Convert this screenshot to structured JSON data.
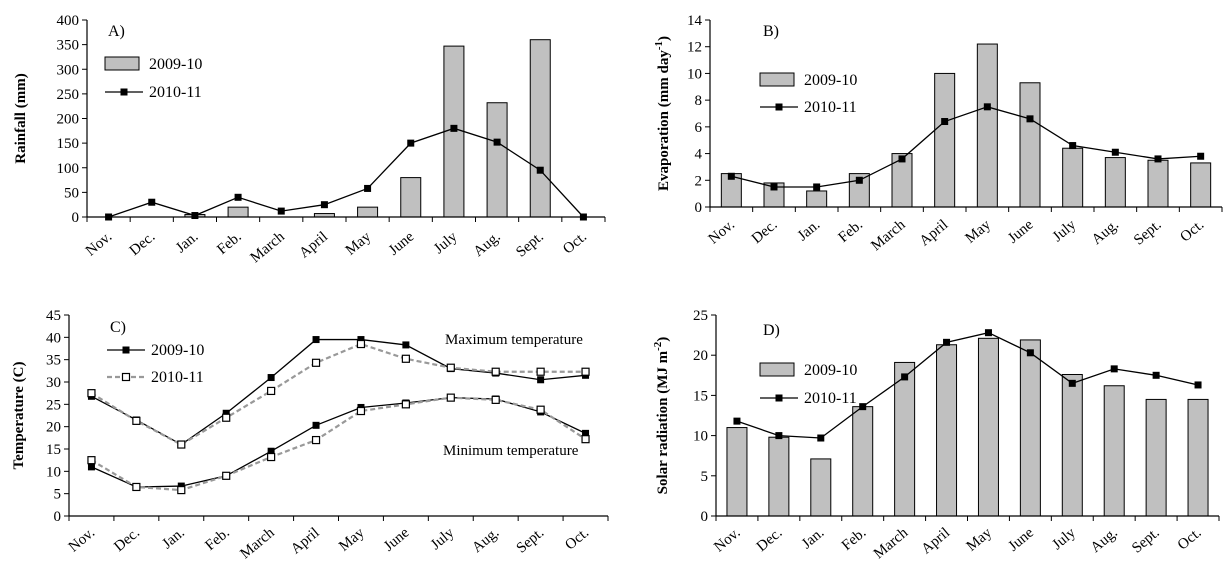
{
  "months": [
    "Nov.",
    "Dec.",
    "Jan.",
    "Feb.",
    "March",
    "April",
    "May",
    "June",
    "July",
    "Aug.",
    "Sept.",
    "Oct."
  ],
  "colors": {
    "bar": "#c0c0c0",
    "bar_edge": "#000000",
    "line_dark": "#000000",
    "line_dashed": "#999999"
  },
  "chart_data": [
    {
      "id": "A",
      "type": "bar",
      "panel_label": "A)",
      "ylabel": "Rainfall (mm)",
      "ylim": [
        0,
        400
      ],
      "yticks": [
        0,
        50,
        100,
        150,
        200,
        250,
        300,
        350,
        400
      ],
      "legend": [
        "2009-10",
        "2010-11"
      ],
      "series": [
        {
          "name": "2009-10",
          "kind": "bar",
          "values": [
            0,
            0,
            5,
            20,
            0,
            7,
            20,
            80,
            347,
            232,
            360,
            0
          ]
        },
        {
          "name": "2010-11",
          "kind": "line",
          "marker": "filled-square",
          "values": [
            0,
            30,
            3,
            40,
            12,
            25,
            58,
            150,
            180,
            152,
            95,
            0
          ]
        }
      ]
    },
    {
      "id": "B",
      "type": "bar",
      "panel_label": "B)",
      "ylabel": "Evaporation (mm day",
      "ylabel_sup": "-1",
      "ylabel_end": ")",
      "ylim": [
        0,
        14
      ],
      "yticks": [
        0,
        2,
        4,
        6,
        8,
        10,
        12,
        14
      ],
      "legend": [
        "2009-10",
        "2010-11"
      ],
      "series": [
        {
          "name": "2009-10",
          "kind": "bar",
          "values": [
            2.5,
            1.8,
            1.2,
            2.5,
            4.0,
            10.0,
            12.2,
            9.3,
            4.4,
            3.7,
            3.5,
            3.3
          ]
        },
        {
          "name": "2010-11",
          "kind": "line",
          "marker": "filled-square",
          "values": [
            2.3,
            1.5,
            1.5,
            2.0,
            3.6,
            6.4,
            7.5,
            6.6,
            4.6,
            4.1,
            3.6,
            3.8
          ]
        }
      ]
    },
    {
      "id": "C",
      "type": "line",
      "panel_label": "C)",
      "ylabel": "Temperature (C)",
      "ylim": [
        0,
        45
      ],
      "yticks": [
        0,
        5,
        10,
        15,
        20,
        25,
        30,
        35,
        40,
        45
      ],
      "legend": [
        "2009-10",
        "2010-11"
      ],
      "annotations": [
        "Maximum temperature",
        "Minimum temperature"
      ],
      "series": [
        {
          "name": "2009-10",
          "kind": "line",
          "marker": "filled-square",
          "values": [
            26.8,
            21.5,
            16.0,
            23.0,
            31.0,
            39.5,
            39.5,
            38.3,
            33.0,
            32.0,
            30.5,
            31.5
          ]
        },
        {
          "name": "2010-11",
          "kind": "line",
          "marker": "open-square",
          "dashed": true,
          "values": [
            27.5,
            21.3,
            16.0,
            22.0,
            28.0,
            34.3,
            38.5,
            35.2,
            33.2,
            32.3,
            32.3,
            32.3
          ]
        },
        {
          "name": "2009-10",
          "kind": "line",
          "marker": "filled-square",
          "values": [
            11.0,
            6.5,
            6.7,
            9.0,
            14.5,
            20.3,
            24.3,
            25.3,
            26.5,
            26.2,
            23.3,
            18.5
          ]
        },
        {
          "name": "2010-11",
          "kind": "line",
          "marker": "open-square",
          "dashed": true,
          "values": [
            12.5,
            6.5,
            5.8,
            9.0,
            13.2,
            17.0,
            23.5,
            25.0,
            26.5,
            26.0,
            23.8,
            17.2
          ]
        }
      ]
    },
    {
      "id": "D",
      "type": "bar",
      "panel_label": "D)",
      "ylabel": "Solar radiation (MJ m",
      "ylabel_sup": "-2",
      "ylabel_end": ")",
      "ylim": [
        0,
        25
      ],
      "yticks": [
        0,
        5,
        10,
        15,
        20,
        25
      ],
      "legend": [
        "2009-10",
        "2010-11"
      ],
      "series": [
        {
          "name": "2009-10",
          "kind": "bar",
          "values": [
            11.0,
            9.8,
            7.1,
            13.6,
            19.1,
            21.3,
            22.1,
            21.9,
            17.6,
            16.2,
            14.5,
            14.5
          ]
        },
        {
          "name": "2010-11",
          "kind": "line",
          "marker": "filled-square",
          "values": [
            11.8,
            10.0,
            9.7,
            13.6,
            17.3,
            21.6,
            22.8,
            20.3,
            16.5,
            18.3,
            17.5,
            16.3
          ]
        }
      ]
    }
  ]
}
